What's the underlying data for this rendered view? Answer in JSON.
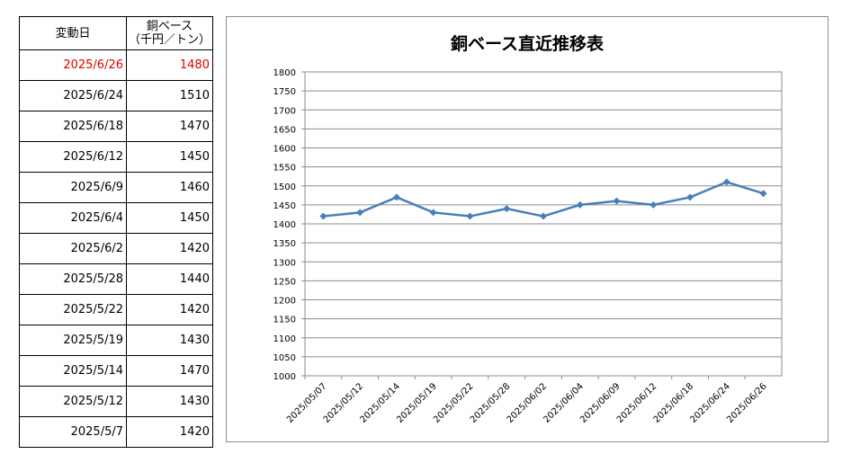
{
  "table": {
    "header_date": "変動日",
    "header_value_line1": "銅ベース",
    "header_value_line2": "（千円／トン）",
    "rows": [
      {
        "date": "2025/6/26",
        "value": "1480",
        "highlight": true
      },
      {
        "date": "2025/6/24",
        "value": "1510",
        "highlight": false
      },
      {
        "date": "2025/6/18",
        "value": "1470",
        "highlight": false
      },
      {
        "date": "2025/6/12",
        "value": "1450",
        "highlight": false
      },
      {
        "date": "2025/6/9",
        "value": "1460",
        "highlight": false
      },
      {
        "date": "2025/6/4",
        "value": "1450",
        "highlight": false
      },
      {
        "date": "2025/6/2",
        "value": "1420",
        "highlight": false
      },
      {
        "date": "2025/5/28",
        "value": "1440",
        "highlight": false
      },
      {
        "date": "2025/5/22",
        "value": "1420",
        "highlight": false
      },
      {
        "date": "2025/5/19",
        "value": "1430",
        "highlight": false
      },
      {
        "date": "2025/5/14",
        "value": "1470",
        "highlight": false
      },
      {
        "date": "2025/5/12",
        "value": "1430",
        "highlight": false
      },
      {
        "date": "2025/5/7",
        "value": "1420",
        "highlight": false
      }
    ]
  },
  "chart_data": {
    "type": "line",
    "title": "銅ベース直近推移表",
    "categories": [
      "2025/05/07",
      "2025/05/12",
      "2025/05/14",
      "2025/05/19",
      "2025/05/22",
      "2025/05/28",
      "2025/06/02",
      "2025/06/04",
      "2025/06/09",
      "2025/06/12",
      "2025/06/18",
      "2025/06/24",
      "2025/06/26"
    ],
    "series": [
      {
        "values": [
          1420,
          1430,
          1470,
          1430,
          1420,
          1440,
          1420,
          1450,
          1460,
          1450,
          1470,
          1510,
          1480
        ]
      }
    ],
    "yticks": [
      1000,
      1050,
      1100,
      1150,
      1200,
      1250,
      1300,
      1350,
      1400,
      1450,
      1500,
      1550,
      1600,
      1650,
      1700,
      1750,
      1800
    ],
    "ylim": [
      1000,
      1800
    ],
    "xlabel": "",
    "ylabel": "",
    "grid": true,
    "marker": "diamond",
    "line_color": "#4a7ebb",
    "highlight_color": "#e00000"
  }
}
